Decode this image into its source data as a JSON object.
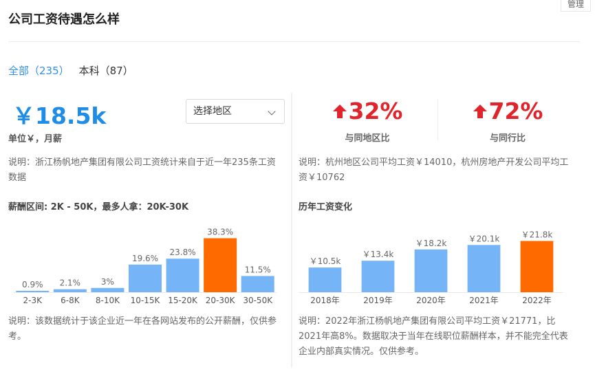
{
  "header": {
    "title": "公司工资待遇怎么样",
    "manage_label": "管理"
  },
  "tabs": [
    {
      "label": "全部（235）",
      "active": true
    },
    {
      "label": "本科（87）",
      "active": false
    }
  ],
  "left": {
    "salary_value": "￥18.5k",
    "salary_unit": "单位￥，月薪",
    "region_select": {
      "value": "选择地区"
    },
    "note_top": "说明：浙江杨帆地产集团有限公司工资统计来自于近一年235条工资数据",
    "range_label": "薪酬区间: 2K - 50K，最多人拿：20K-30K",
    "note_bottom": "说明：该数据统计于该企业近一年在各网站发布的公开薪酬，仅供参考。"
  },
  "right": {
    "stats": [
      {
        "value": "32%",
        "label": "与同地区比"
      },
      {
        "value": "72%",
        "label": "与同行比"
      }
    ],
    "note_top": "说明：杭州地区公司平均工资￥14010，杭州房地产开发公司平均工资￥10762",
    "history_label": "历年工资变化",
    "note_bottom": "说明：2022年浙江杨帆地产集团有限公司平均工资￥21771，比2021年高8%。数据取决于当年在线职位薪酬样本，并不能完全代表企业内部真实情况。仅供参考。"
  },
  "colors": {
    "accent_blue": "#2f8fec",
    "bar_blue": "#74b4f7",
    "bar_highlight": "#ff6a00",
    "up_red": "#e0242c"
  },
  "chart_data": [
    {
      "type": "bar",
      "categories": [
        "2-3K",
        "6-8K",
        "8-10K",
        "10-15K",
        "15-20K",
        "20-30K",
        "30-50K"
      ],
      "values": [
        0.9,
        2.1,
        3,
        19.6,
        23.8,
        38.3,
        11.5
      ],
      "labels": [
        "0.9%",
        "2.1%",
        "3%",
        "19.6%",
        "23.8%",
        "38.3%",
        "11.5%"
      ],
      "highlight_index": 5,
      "ylim": [
        0,
        40
      ]
    },
    {
      "type": "bar",
      "categories": [
        "2018年",
        "2019年",
        "2020年",
        "2021年",
        "2022年"
      ],
      "values": [
        10.5,
        13.4,
        18.2,
        20.1,
        21.8
      ],
      "labels": [
        "￥10.5k",
        "￥13.4k",
        "￥18.2k",
        "￥20.1k",
        "￥21.8k"
      ],
      "highlight_index": 4,
      "ylim": [
        0,
        24
      ]
    }
  ]
}
